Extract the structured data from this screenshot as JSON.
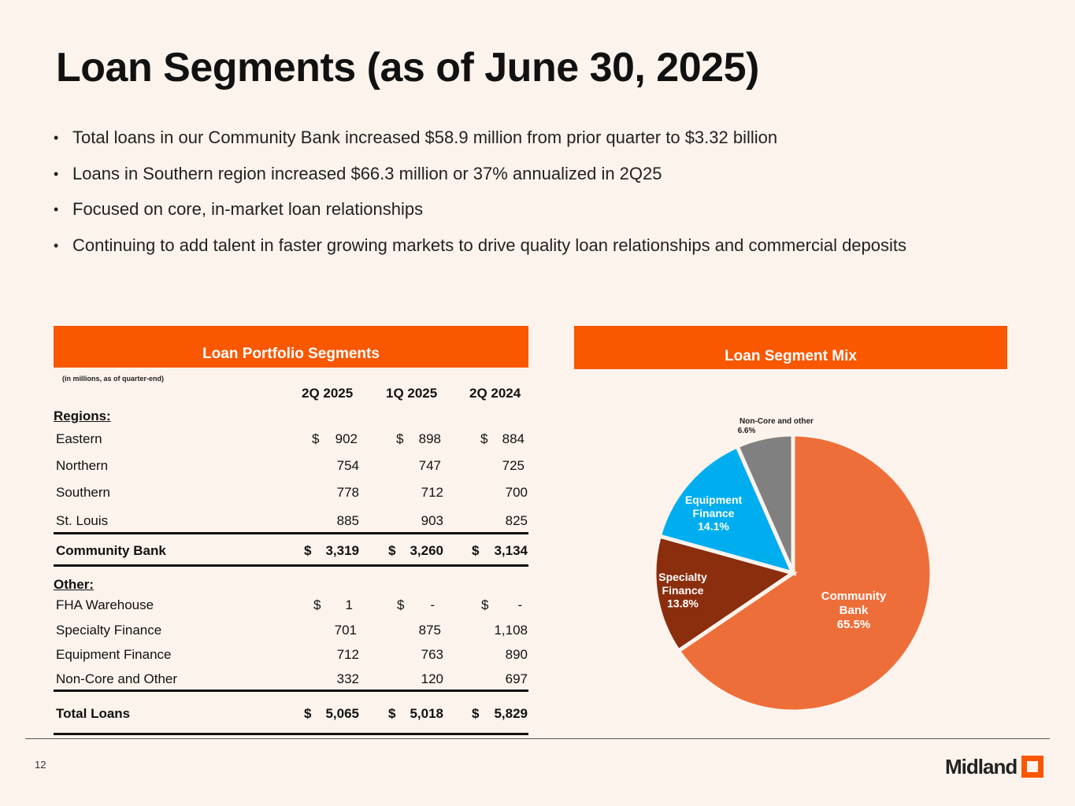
{
  "title": "Loan Segments (as of June 30, 2025)",
  "bullets": [
    "Total loans in our Community Bank increased $58.9 million from prior quarter to $3.32 billion",
    "Loans in Southern region increased $66.3 million or 37% annualized in 2Q25",
    "Focused on core, in-market loan relationships",
    "Continuing to add talent in faster growing markets to drive quality loan relationships and commercial deposits"
  ],
  "table": {
    "header": "Loan Portfolio Segments",
    "note": "(in millions, as of quarter-end)",
    "columns": [
      "2Q 2025",
      "1Q 2025",
      "2Q 2024"
    ],
    "regions_label": "Regions:",
    "other_label": "Other:",
    "currency": "$",
    "rows": {
      "eastern": {
        "label": "Eastern",
        "values": [
          "902",
          "898",
          "884"
        ]
      },
      "northern": {
        "label": "Northern",
        "values": [
          "754",
          "747",
          "725"
        ]
      },
      "southern": {
        "label": "Southern",
        "values": [
          "778",
          "712",
          "700"
        ]
      },
      "stlouis": {
        "label": "St. Louis",
        "values": [
          "885",
          "903",
          "825"
        ]
      },
      "community": {
        "label": "Community Bank",
        "values": [
          "3,319",
          "3,260",
          "3,134"
        ]
      },
      "fha": {
        "label": "FHA Warehouse",
        "values": [
          "1",
          "-",
          "-"
        ]
      },
      "specialty": {
        "label": "Specialty Finance",
        "values": [
          "701",
          "875",
          "1,108"
        ]
      },
      "equipment": {
        "label": "Equipment Finance",
        "values": [
          "712",
          "763",
          "890"
        ]
      },
      "noncore": {
        "label": "Non-Core and Other",
        "values": [
          "332",
          "120",
          "697"
        ]
      },
      "total": {
        "label": "Total Loans",
        "values": [
          "5,065",
          "5,018",
          "5,829"
        ]
      }
    }
  },
  "chart_header": "Loan Segment Mix",
  "chart_data": {
    "type": "pie",
    "title": "Loan Segment Mix",
    "slices": [
      {
        "name": "Community Bank",
        "line1": "Community",
        "line2": "Bank",
        "value": 65.5,
        "pct": "65.5%",
        "color": "#ee6e3a"
      },
      {
        "name": "Specialty Finance",
        "line1": "Specialty",
        "line2": "Finance",
        "value": 13.8,
        "pct": "13.8%",
        "color": "#8a2e0e"
      },
      {
        "name": "Equipment Finance",
        "line1": "Equipment",
        "line2": "Finance",
        "value": 14.1,
        "pct": "14.1%",
        "color": "#00aeef"
      },
      {
        "name": "Non-Core and other",
        "line1": "Non-Core and other",
        "line2": "",
        "value": 6.6,
        "pct": "6.6%",
        "color": "#808080"
      }
    ]
  },
  "footer": {
    "page": "12",
    "logo": "Midland"
  },
  "colors": {
    "accent": "#f95700",
    "background": "#fcf3ec"
  }
}
